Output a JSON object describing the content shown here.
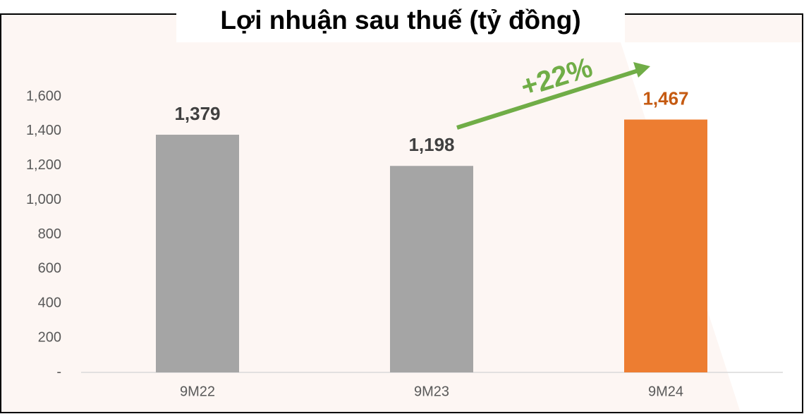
{
  "chart_data": {
    "type": "bar",
    "title": "Lợi nhuận sau thuế (tỷ đồng)",
    "categories": [
      "9M22",
      "9M23",
      "9M24"
    ],
    "values": [
      1379,
      1198,
      1467
    ],
    "value_labels": [
      "1,379",
      "1,198",
      "1,467"
    ],
    "colors": [
      "#a5a5a5",
      "#a5a5a5",
      "#ed7d31"
    ],
    "label_colors": [
      "#404040",
      "#404040",
      "#c55a11"
    ],
    "annotation": "+22%",
    "annotation_color": "#70ad47",
    "ylim": [
      0,
      1600
    ],
    "yticks": [
      {
        "value": 0,
        "label": "-"
      },
      200,
      400,
      600,
      800,
      {
        "value": 1000,
        "label": "1,000"
      },
      {
        "value": 1200,
        "label": "1,200"
      },
      {
        "value": 1400,
        "label": "1,400"
      },
      {
        "value": 1600,
        "label": "1,600"
      }
    ],
    "grid": false
  }
}
